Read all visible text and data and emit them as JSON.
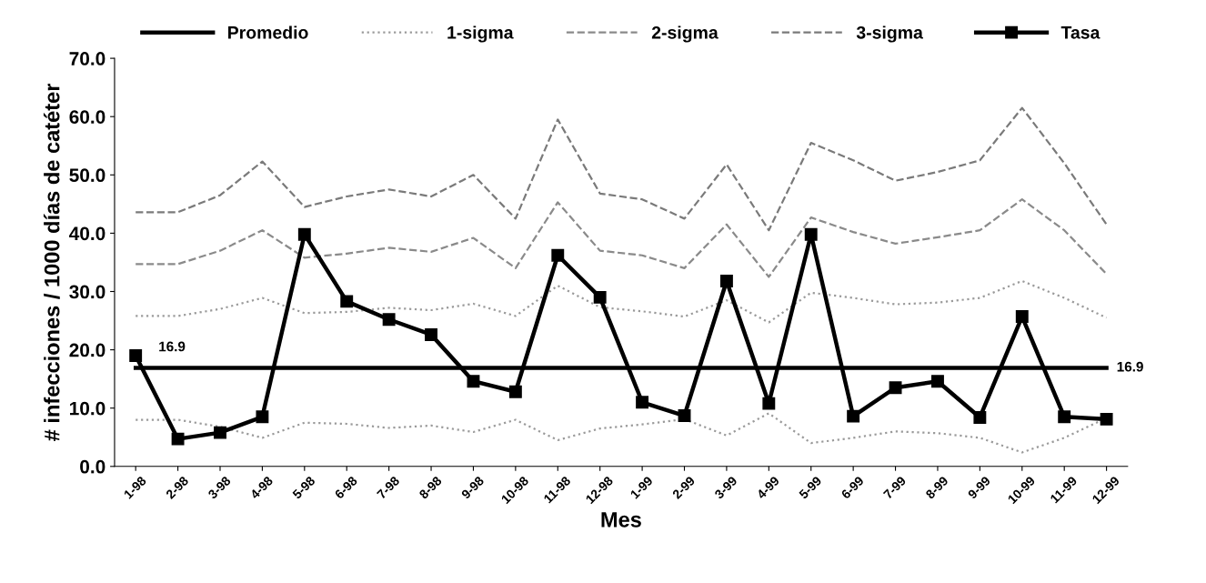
{
  "chart_data": {
    "type": "line",
    "xlabel": "Mes",
    "ylabel": "# infecciones / 1000 días de catéter",
    "categories": [
      "1-98",
      "2-98",
      "3-98",
      "4-98",
      "5-98",
      "6-98",
      "7-98",
      "8-98",
      "9-98",
      "10-98",
      "11-98",
      "12-98",
      "1-99",
      "2-99",
      "3-99",
      "4-99",
      "5-99",
      "6-99",
      "7-99",
      "8-99",
      "9-99",
      "10-99",
      "11-99",
      "12-99"
    ],
    "series": [
      {
        "name": "Promedio",
        "color": "#000000",
        "line_style": "solid",
        "marker": "none",
        "values": [
          16.9,
          16.9,
          16.9,
          16.9,
          16.9,
          16.9,
          16.9,
          16.9,
          16.9,
          16.9,
          16.9,
          16.9,
          16.9,
          16.9,
          16.9,
          16.9,
          16.9,
          16.9,
          16.9,
          16.9,
          16.9,
          16.9,
          16.9,
          16.9
        ]
      },
      {
        "name": "1-sigma",
        "color": "#9a9a9a",
        "line_style": "dotted",
        "marker": "none",
        "values": [
          25.8,
          25.8,
          27.0,
          28.9,
          26.3,
          26.5,
          27.2,
          26.8,
          27.9,
          25.8,
          31.0,
          27.3,
          26.6,
          25.7,
          28.5,
          24.7,
          29.8,
          28.9,
          27.8,
          28.1,
          28.9,
          31.8,
          28.9,
          25.5
        ]
      },
      {
        "color": "#9a9a9a",
        "line_style": "dotted",
        "marker": "none",
        "values": [
          8.0,
          8.0,
          6.8,
          4.9,
          7.5,
          7.3,
          6.6,
          7.0,
          5.9,
          8.0,
          4.5,
          6.5,
          7.2,
          8.1,
          5.3,
          9.1,
          4.0,
          4.9,
          6.0,
          5.7,
          4.9,
          2.4,
          4.9,
          8.3
        ]
      },
      {
        "name": "2-sigma",
        "color": "#8a8a8a",
        "line_style": "dashed",
        "marker": "none",
        "values": [
          34.7,
          34.7,
          37.0,
          40.5,
          35.8,
          36.5,
          37.5,
          36.8,
          39.2,
          34.0,
          45.3,
          37.0,
          36.2,
          34.0,
          41.5,
          32.5,
          42.7,
          40.2,
          38.2,
          39.3,
          40.5,
          45.8,
          40.5,
          33.0
        ]
      },
      {
        "name": "3-sigma",
        "color": "#7a7a7a",
        "line_style": "dashed",
        "marker": "none",
        "values": [
          43.6,
          43.6,
          46.5,
          52.3,
          44.5,
          46.3,
          47.5,
          46.3,
          50.0,
          42.5,
          59.5,
          46.8,
          45.8,
          42.5,
          51.8,
          40.5,
          55.5,
          52.5,
          49.0,
          50.5,
          52.5,
          61.5,
          52.0,
          41.5
        ]
      },
      {
        "name": "Tasa",
        "color": "#000000",
        "line_style": "solid",
        "marker": "square",
        "values": [
          19.0,
          4.7,
          5.8,
          8.5,
          39.8,
          28.3,
          25.2,
          22.6,
          14.6,
          12.8,
          36.2,
          29.0,
          11.0,
          8.7,
          31.8,
          10.8,
          39.8,
          8.6,
          13.5,
          14.6,
          8.4,
          25.7,
          8.5,
          8.1
        ]
      }
    ],
    "annotations": [
      {
        "text": "16.9",
        "x": "1-98",
        "y": 16.9
      },
      {
        "text": "16.9",
        "x": "12-99",
        "y": 16.9
      }
    ],
    "ylim": [
      0,
      70
    ],
    "yticks": [
      {
        "value": 0,
        "label": "0.0"
      },
      {
        "value": 10,
        "label": "10.0"
      },
      {
        "value": 20,
        "label": "20.0"
      },
      {
        "value": 30,
        "label": "30.0"
      },
      {
        "value": 40,
        "label": "40.0"
      },
      {
        "value": 50,
        "label": "50.0"
      },
      {
        "value": 60,
        "label": "60.0"
      },
      {
        "value": 70,
        "label": "70.0"
      }
    ],
    "grid": false,
    "legend": "top"
  }
}
